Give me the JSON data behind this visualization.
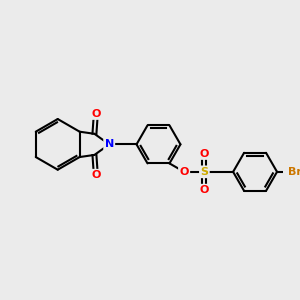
{
  "background_color": "#ebebeb",
  "bond_color": "#000000",
  "bond_width": 1.5,
  "atom_colors": {
    "O": "#ff0000",
    "N": "#0000ff",
    "S": "#ccaa00",
    "Br": "#cc7700",
    "C": "#000000"
  },
  "font_size_atom": 8,
  "figsize": [
    3.0,
    3.0
  ],
  "dpi": 100
}
